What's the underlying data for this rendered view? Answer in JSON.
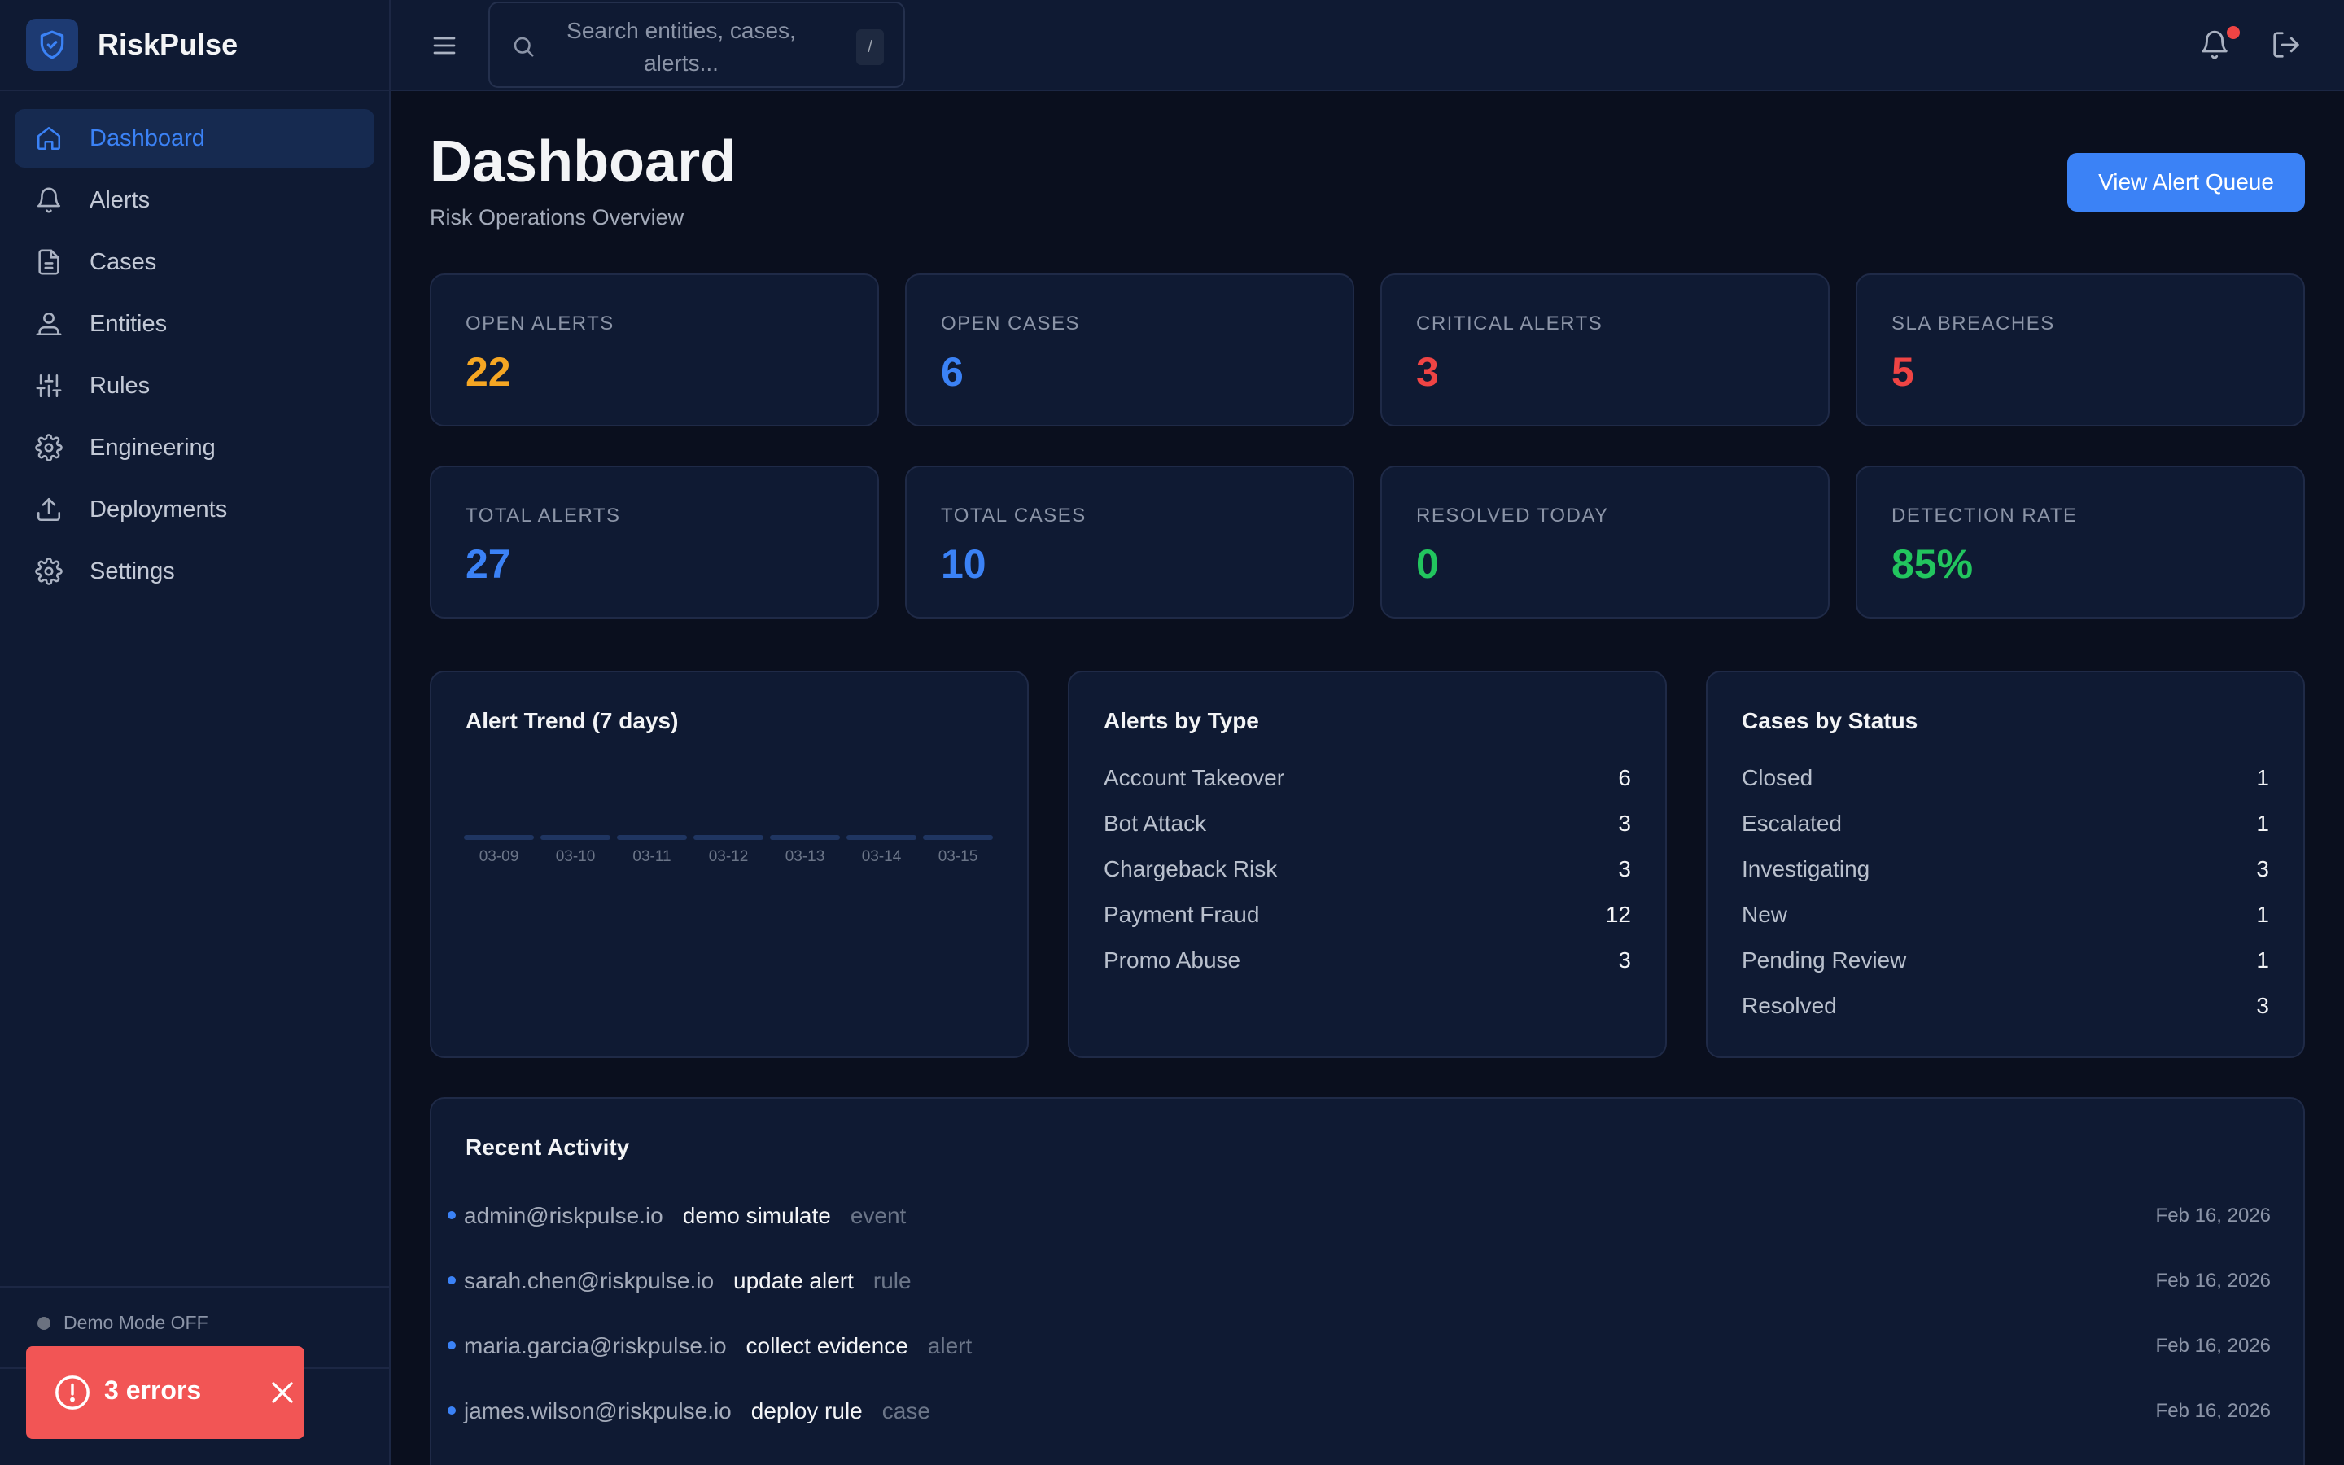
{
  "brand": {
    "name": "RiskPulse"
  },
  "sidebar": {
    "items": [
      {
        "label": "Dashboard",
        "icon": "home-icon",
        "active": true
      },
      {
        "label": "Alerts",
        "icon": "bell-icon"
      },
      {
        "label": "Cases",
        "icon": "document-icon"
      },
      {
        "label": "Entities",
        "icon": "users-icon"
      },
      {
        "label": "Rules",
        "icon": "sliders-icon"
      },
      {
        "label": "Engineering",
        "icon": "gear-icon"
      },
      {
        "label": "Deployments",
        "icon": "upload-icon"
      },
      {
        "label": "Settings",
        "icon": "gear-icon"
      }
    ],
    "demo_mode": "Demo Mode OFF"
  },
  "topbar": {
    "search_placeholder": "Search entities, cases, alerts...",
    "search_shortcut": "/"
  },
  "header": {
    "title": "Dashboard",
    "subtitle": "Risk Operations Overview",
    "action_label": "View Alert Queue"
  },
  "stats": [
    {
      "label": "OPEN ALERTS",
      "value": "22",
      "color": "#f5a623"
    },
    {
      "label": "OPEN CASES",
      "value": "6",
      "color": "#3b82f6"
    },
    {
      "label": "CRITICAL ALERTS",
      "value": "3",
      "color": "#ef4444"
    },
    {
      "label": "SLA BREACHES",
      "value": "5",
      "color": "#ef4444"
    },
    {
      "label": "TOTAL ALERTS",
      "value": "27",
      "color": "#3b82f6"
    },
    {
      "label": "TOTAL CASES",
      "value": "10",
      "color": "#3b82f6"
    },
    {
      "label": "RESOLVED TODAY",
      "value": "0",
      "color": "#22c55e"
    },
    {
      "label": "DETECTION RATE",
      "value": "85%",
      "color": "#22c55e"
    }
  ],
  "alert_trend": {
    "title": "Alert Trend (7 days)",
    "days": [
      "03-09",
      "03-10",
      "03-11",
      "03-12",
      "03-13",
      "03-14",
      "03-15"
    ]
  },
  "alerts_by_type": {
    "title": "Alerts by Type",
    "rows": [
      {
        "label": "Account Takeover",
        "value": "6"
      },
      {
        "label": "Bot Attack",
        "value": "3"
      },
      {
        "label": "Chargeback Risk",
        "value": "3"
      },
      {
        "label": "Payment Fraud",
        "value": "12"
      },
      {
        "label": "Promo Abuse",
        "value": "3"
      }
    ]
  },
  "cases_by_status": {
    "title": "Cases by Status",
    "rows": [
      {
        "label": "Closed",
        "value": "1"
      },
      {
        "label": "Escalated",
        "value": "1"
      },
      {
        "label": "Investigating",
        "value": "3"
      },
      {
        "label": "New",
        "value": "1"
      },
      {
        "label": "Pending Review",
        "value": "1"
      },
      {
        "label": "Resolved",
        "value": "3"
      }
    ]
  },
  "recent_activity": {
    "title": "Recent Activity",
    "rows": [
      {
        "user": "admin@riskpulse.io",
        "action": "demo simulate",
        "type": "event",
        "date": "Feb 16, 2026"
      },
      {
        "user": "sarah.chen@riskpulse.io",
        "action": "update alert",
        "type": "rule",
        "date": "Feb 16, 2026"
      },
      {
        "user": "maria.garcia@riskpulse.io",
        "action": "collect evidence",
        "type": "alert",
        "date": "Feb 16, 2026"
      },
      {
        "user": "james.wilson@riskpulse.io",
        "action": "deploy rule",
        "type": "case",
        "date": "Feb 16, 2026"
      }
    ]
  },
  "toast": {
    "text": "3 errors"
  }
}
